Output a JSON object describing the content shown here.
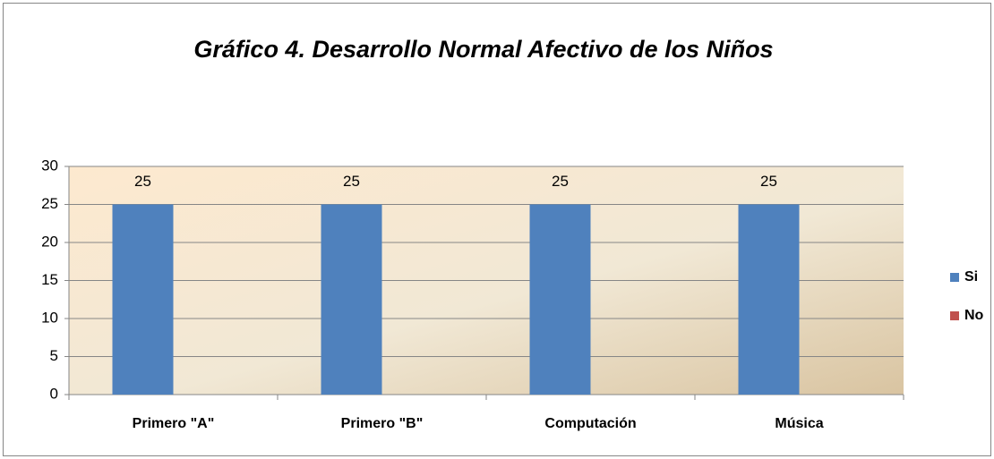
{
  "chart_data": {
    "type": "bar",
    "title": "Gráfico 4. Desarrollo Normal Afectivo de los Niños",
    "categories": [
      "Primero \"A\"",
      "Primero \"B\"",
      "Computación",
      "Música"
    ],
    "series": [
      {
        "name": "Si",
        "color": "#4f81bd",
        "values": [
          25,
          25,
          25,
          25
        ],
        "data_labels": true
      },
      {
        "name": "No",
        "color": "#c0504d",
        "values": [
          0,
          0,
          0,
          0
        ],
        "data_labels": false
      }
    ],
    "ylim": [
      0,
      30
    ],
    "yticks": [
      0,
      5,
      10,
      15,
      20,
      25,
      30
    ],
    "grid": true,
    "legend": "right"
  }
}
